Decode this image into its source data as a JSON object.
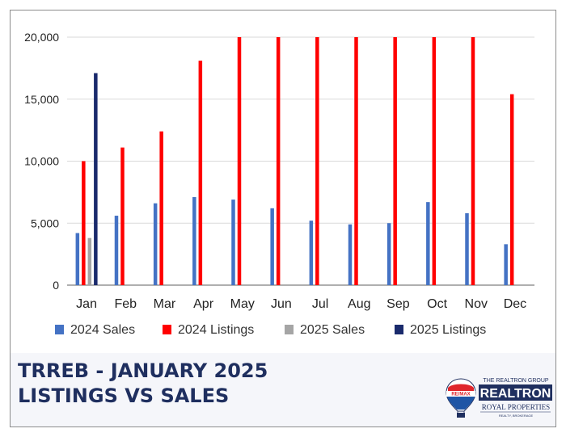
{
  "chart_data": {
    "type": "bar",
    "categories": [
      "Jan",
      "Feb",
      "Mar",
      "Apr",
      "May",
      "Jun",
      "Jul",
      "Aug",
      "Sep",
      "Oct",
      "Nov",
      "Dec"
    ],
    "series": [
      {
        "name": "2024 Sales",
        "color": "#4472c4",
        "values": [
          4200,
          5600,
          6600,
          7100,
          6900,
          6200,
          5200,
          4900,
          5000,
          6700,
          5800,
          3300
        ]
      },
      {
        "name": "2024 Listings",
        "color": "#ff0000",
        "values": [
          10000,
          11100,
          12400,
          18100,
          20000,
          20000,
          20000,
          20000,
          20000,
          20000,
          20000,
          15400
        ]
      },
      {
        "name": "2025 Sales",
        "color": "#a5a5a5",
        "values": [
          3800,
          null,
          null,
          null,
          null,
          null,
          null,
          null,
          null,
          null,
          null,
          null
        ]
      },
      {
        "name": "2025 Listings",
        "color": "#1a2a6c",
        "values": [
          17100,
          null,
          null,
          null,
          null,
          null,
          null,
          null,
          null,
          null,
          null,
          null
        ]
      }
    ],
    "y_ticks": [
      "0",
      "5,000",
      "10,000",
      "15,000",
      "20,000"
    ],
    "ylim": [
      0,
      20000
    ],
    "grid": true,
    "legend_position": "bottom"
  },
  "footer": {
    "title_line1": "TRREB - JANUARY 2025",
    "title_line2": "LISTINGS VS SALES"
  },
  "logo": {
    "group_text": "THE REALTRON GROUP",
    "brand_text": "REALTRON",
    "sub_text": "ROYAL PROPERTIES",
    "tagline": "REALTY, BROKERAGE",
    "balloon_text": "RE/MAX",
    "colors": {
      "navy": "#1f2f5f",
      "red": "#e0262c",
      "blue": "#1f55a5"
    }
  }
}
